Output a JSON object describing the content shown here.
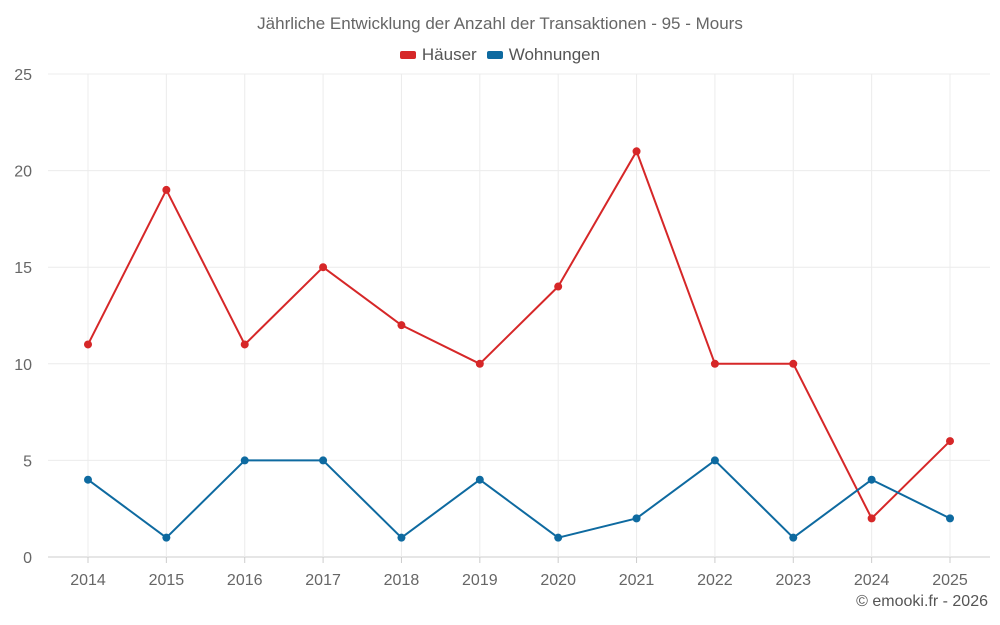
{
  "chart_data": {
    "type": "line",
    "title": "Jährliche Entwicklung der Anzahl der Transaktionen - 95 - Mours",
    "categories": [
      "2014",
      "2015",
      "2016",
      "2017",
      "2018",
      "2019",
      "2020",
      "2021",
      "2022",
      "2023",
      "2024",
      "2025"
    ],
    "series": [
      {
        "name": "Häuser",
        "color": "#d62728",
        "values": [
          11,
          19,
          11,
          15,
          12,
          10,
          14,
          21,
          10,
          10,
          2,
          6
        ]
      },
      {
        "name": "Wohnungen",
        "color": "#0e6aa0",
        "values": [
          4,
          1,
          5,
          5,
          1,
          4,
          1,
          2,
          5,
          1,
          4,
          2
        ]
      }
    ],
    "ylim": [
      0,
      25
    ],
    "yticks": [
      0,
      5,
      10,
      15,
      20,
      25
    ],
    "xlabel": "",
    "ylabel": "",
    "legend_position": "top-center",
    "grid": true
  },
  "legend": {
    "items": [
      {
        "label": "Häuser",
        "color": "#d62728"
      },
      {
        "label": "Wohnungen",
        "color": "#0e6aa0"
      }
    ]
  },
  "footer": {
    "credit": "© emooki.fr - 2026"
  }
}
